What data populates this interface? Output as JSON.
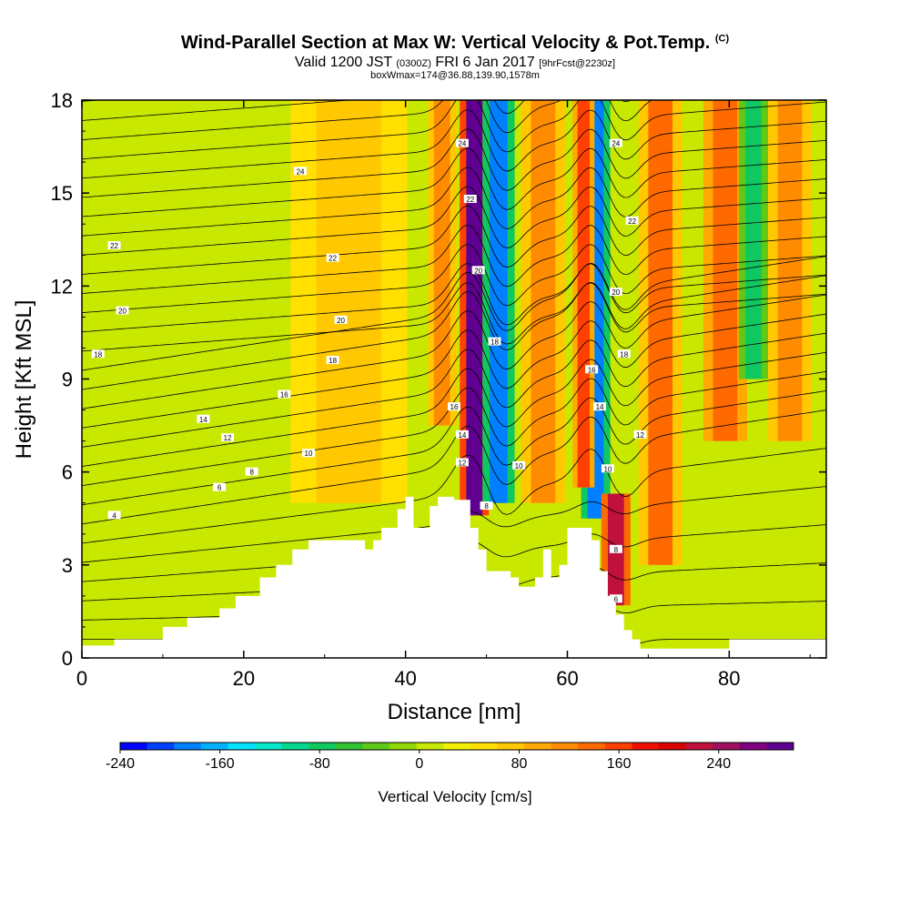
{
  "title": {
    "main": "Wind-Parallel Section at Max W: Vertical Velocity & Pot.Temp.",
    "copyright": "(C)",
    "line2_a": "Valid 1200 JST",
    "line2_b": "(0300Z)",
    "line2_c": "FRI 6 Jan 2017",
    "line2_d": "[9hrFcst@2230z]",
    "line3": "boxWmax=174@36.88,139.90,1578m"
  },
  "chart_data": {
    "type": "heatmap",
    "xlabel": "Distance [nm]",
    "ylabel": "Height [Kft MSL]",
    "xlim": [
      0,
      92
    ],
    "ylim": [
      0,
      18
    ],
    "xticks": [
      0,
      20,
      40,
      60,
      80
    ],
    "yticks": [
      0,
      3,
      6,
      9,
      12,
      15,
      18
    ],
    "colorbar": {
      "title": "Vertical Velocity [cm/s]",
      "min": -240,
      "max": 280,
      "step": 20,
      "tick_values": [
        -240,
        -160,
        -80,
        0,
        80,
        160,
        240
      ],
      "tick_labels": [
        "-240",
        "-160",
        "-80",
        "0",
        "80",
        "160",
        "240"
      ],
      "colors": [
        "#0000ff",
        "#0040ff",
        "#0080ff",
        "#00b0ff",
        "#00e0ff",
        "#00e6c8",
        "#00d890",
        "#10c860",
        "#30c030",
        "#60c818",
        "#90d800",
        "#c8e800",
        "#f0f000",
        "#ffe000",
        "#ffc800",
        "#ffaa00",
        "#ff8c00",
        "#ff6a00",
        "#ff4000",
        "#f01000",
        "#d80000",
        "#c0103c",
        "#a01060",
        "#800080",
        "#600090"
      ]
    },
    "terrain_profile": [
      [
        0,
        0.4
      ],
      [
        4,
        0.4
      ],
      [
        4,
        0.6
      ],
      [
        10,
        0.6
      ],
      [
        10,
        1.0
      ],
      [
        13,
        1.0
      ],
      [
        13,
        1.3
      ],
      [
        17,
        1.3
      ],
      [
        17,
        1.6
      ],
      [
        19,
        1.6
      ],
      [
        19,
        2.0
      ],
      [
        22,
        2.0
      ],
      [
        22,
        2.6
      ],
      [
        24,
        2.6
      ],
      [
        24,
        3.0
      ],
      [
        26,
        3.0
      ],
      [
        26,
        3.5
      ],
      [
        28,
        3.5
      ],
      [
        28,
        3.8
      ],
      [
        35,
        3.8
      ],
      [
        35,
        3.5
      ],
      [
        36,
        3.5
      ],
      [
        36,
        3.8
      ],
      [
        37,
        3.8
      ],
      [
        37,
        4.2
      ],
      [
        39,
        4.2
      ],
      [
        39,
        4.8
      ],
      [
        40,
        4.8
      ],
      [
        40,
        5.2
      ],
      [
        41,
        5.2
      ],
      [
        41,
        4.2
      ],
      [
        43,
        4.2
      ],
      [
        43,
        4.9
      ],
      [
        44,
        4.9
      ],
      [
        44,
        5.2
      ],
      [
        46,
        5.2
      ],
      [
        46,
        5.1
      ],
      [
        48,
        5.1
      ],
      [
        48,
        4.2
      ],
      [
        49,
        4.2
      ],
      [
        49,
        3.5
      ],
      [
        50,
        3.5
      ],
      [
        50,
        2.8
      ],
      [
        53,
        2.8
      ],
      [
        53,
        2.6
      ],
      [
        54,
        2.6
      ],
      [
        54,
        2.3
      ],
      [
        56,
        2.3
      ],
      [
        56,
        2.6
      ],
      [
        57,
        2.6
      ],
      [
        57,
        3.5
      ],
      [
        58,
        3.5
      ],
      [
        58,
        2.6
      ],
      [
        59,
        2.6
      ],
      [
        59,
        3.0
      ],
      [
        60,
        3.0
      ],
      [
        60,
        4.2
      ],
      [
        63,
        4.2
      ],
      [
        63,
        3.8
      ],
      [
        64,
        3.8
      ],
      [
        64,
        2.8
      ],
      [
        65,
        2.8
      ],
      [
        65,
        2.0
      ],
      [
        66,
        2.0
      ],
      [
        66,
        1.4
      ],
      [
        67,
        1.4
      ],
      [
        67,
        0.9
      ],
      [
        68,
        0.9
      ],
      [
        68,
        0.6
      ],
      [
        69,
        0.6
      ],
      [
        69,
        0.3
      ],
      [
        80,
        0.3
      ],
      [
        80,
        0.6
      ],
      [
        92,
        0.6
      ]
    ],
    "contours": [
      {
        "label": "4",
        "x": 4,
        "y": 4.6
      },
      {
        "label": "6",
        "x": 17,
        "y": 5.5
      },
      {
        "label": "8",
        "x": 21,
        "y": 6.0
      },
      {
        "label": "10",
        "x": 28,
        "y": 6.6
      },
      {
        "label": "12",
        "x": 18,
        "y": 7.1
      },
      {
        "label": "14",
        "x": 15,
        "y": 7.7
      },
      {
        "label": "16",
        "x": 25,
        "y": 8.5
      },
      {
        "label": "18",
        "x": 2,
        "y": 9.8
      },
      {
        "label": "18",
        "x": 31,
        "y": 9.6
      },
      {
        "label": "20",
        "x": 5,
        "y": 11.2
      },
      {
        "label": "20",
        "x": 32,
        "y": 10.9
      },
      {
        "label": "22",
        "x": 31,
        "y": 12.9
      },
      {
        "label": "22",
        "x": 4,
        "y": 13.3
      },
      {
        "label": "24",
        "x": 27,
        "y": 15.7
      },
      {
        "label": "24",
        "x": 47,
        "y": 16.6
      },
      {
        "label": "22",
        "x": 48,
        "y": 14.8
      },
      {
        "label": "20",
        "x": 49,
        "y": 12.5
      },
      {
        "label": "18",
        "x": 51,
        "y": 10.2
      },
      {
        "label": "16",
        "x": 46,
        "y": 8.1
      },
      {
        "label": "14",
        "x": 47,
        "y": 7.2
      },
      {
        "label": "12",
        "x": 47,
        "y": 6.3
      },
      {
        "label": "10",
        "x": 54,
        "y": 6.2
      },
      {
        "label": "8",
        "x": 50,
        "y": 4.9
      },
      {
        "label": "16",
        "x": 63,
        "y": 9.3
      },
      {
        "label": "14",
        "x": 64,
        "y": 8.1
      },
      {
        "label": "12",
        "x": 69,
        "y": 7.2
      },
      {
        "label": "10",
        "x": 65,
        "y": 6.1
      },
      {
        "label": "8",
        "x": 66,
        "y": 3.5
      },
      {
        "label": "6",
        "x": 66,
        "y": 1.9
      },
      {
        "label": "18",
        "x": 67,
        "y": 9.8
      },
      {
        "label": "20",
        "x": 66,
        "y": 11.8
      },
      {
        "label": "22",
        "x": 68,
        "y": 14.1
      },
      {
        "label": "24",
        "x": 66,
        "y": 16.6
      }
    ],
    "velocity_bands": [
      {
        "x": 48.5,
        "width": 2.0,
        "value": 230,
        "ymin": 4.6,
        "ymax": 18
      },
      {
        "x": 51.5,
        "width": 2.2,
        "value": -200,
        "ymin": 5.0,
        "ymax": 18
      },
      {
        "x": 63.5,
        "width": 2.0,
        "value": -200,
        "ymin": 4.5,
        "ymax": 18
      },
      {
        "x": 62.0,
        "width": 1.5,
        "value": 120,
        "ymin": 5.5,
        "ymax": 18
      },
      {
        "x": 66.0,
        "width": 2.0,
        "value": 180,
        "ymin": 1.7,
        "ymax": 5.3
      },
      {
        "x": 57.0,
        "width": 3.0,
        "value": 80,
        "ymin": 5.0,
        "ymax": 18
      },
      {
        "x": 71.5,
        "width": 3.0,
        "value": 90,
        "ymin": 3.0,
        "ymax": 18
      },
      {
        "x": 76.0,
        "width": 2.0,
        "value": -30,
        "ymin": 1.0,
        "ymax": 18
      },
      {
        "x": 79.5,
        "width": 3.0,
        "value": 100,
        "ymin": 7.0,
        "ymax": 18
      },
      {
        "x": 83.0,
        "width": 2.0,
        "value": -100,
        "ymin": 9.0,
        "ymax": 18
      },
      {
        "x": 87.5,
        "width": 3.0,
        "value": 80,
        "ymin": 7.0,
        "ymax": 18
      },
      {
        "x": 44.5,
        "width": 2.0,
        "value": 80,
        "ymin": 7.5,
        "ymax": 18
      },
      {
        "x": 41.0,
        "width": 2.0,
        "value": -30,
        "ymin": 6.0,
        "ymax": 18
      },
      {
        "x": 8.0,
        "width": 5.0,
        "value": -20,
        "ymin": 0.5,
        "ymax": 18
      },
      {
        "x": 33.0,
        "width": 8.0,
        "value": 40,
        "ymin": 5.0,
        "ymax": 18
      }
    ]
  }
}
